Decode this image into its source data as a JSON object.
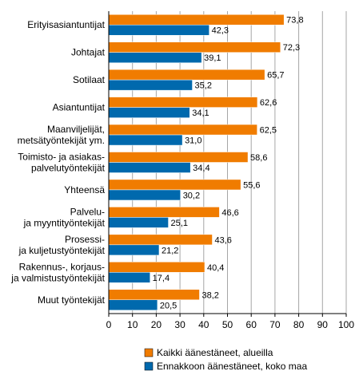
{
  "chart_data": {
    "type": "bar",
    "orientation": "horizontal",
    "categories": [
      [
        "Erityisasiantuntijat"
      ],
      [
        "Johtajat"
      ],
      [
        "Sotilaat"
      ],
      [
        "Asiantuntijat"
      ],
      [
        "Maanviljelijät,",
        "metsätyöntekijät ym."
      ],
      [
        "Toimisto- ja asiakas-",
        "palvelutyöntekijät"
      ],
      [
        "Yhteensä"
      ],
      [
        "Palvelu-",
        "ja myyntityöntekijät"
      ],
      [
        "Prosessi-",
        "ja kuljetustyöntekijät"
      ],
      [
        "Rakennus-, korjaus-",
        "ja valmistustyöntekijät"
      ],
      [
        "Muut työntekijät"
      ]
    ],
    "series": [
      {
        "name": "Kaikki äänestäneet, alueilla",
        "color": "#f07c00",
        "values": [
          73.8,
          72.3,
          65.7,
          62.6,
          62.5,
          58.6,
          55.6,
          46.6,
          43.6,
          40.4,
          38.2
        ],
        "labels": [
          "73,8",
          "72,3",
          "65,7",
          "62,6",
          "62,5",
          "58,6",
          "55,6",
          "46,6",
          "43,6",
          "40,4",
          "38,2"
        ]
      },
      {
        "name": "Ennakkoon äänestäneet, koko maa",
        "color": "#0069ad",
        "values": [
          42.3,
          39.1,
          35.2,
          34.1,
          31.0,
          34.4,
          30.2,
          25.1,
          21.2,
          17.4,
          20.5
        ],
        "labels": [
          "42,3",
          "39,1",
          "35,2",
          "34,1",
          "31,0",
          "34,4",
          "30,2",
          "25,1",
          "21,2",
          "17,4",
          "20,5"
        ]
      }
    ],
    "xlim": [
      0,
      100
    ],
    "ticks": [
      "0",
      "10",
      "20",
      "30",
      "40",
      "50",
      "60",
      "70",
      "80",
      "90",
      "100"
    ],
    "grid": true,
    "legend_position": "bottom"
  }
}
